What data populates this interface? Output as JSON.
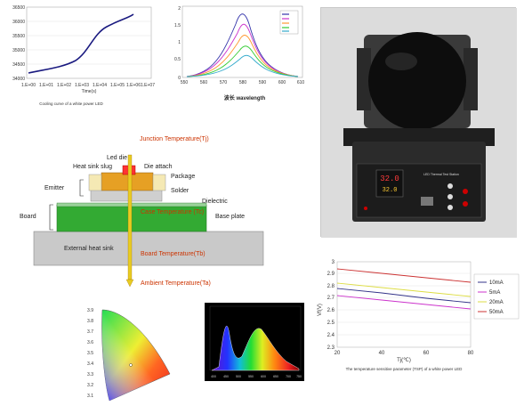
{
  "cooling_chart": {
    "ytick_labels": [
      "36500",
      "36000",
      "35500",
      "35000",
      "34500",
      "34000"
    ],
    "xtick_labels": [
      "1.E+00",
      "1.E+01",
      "1.E+02",
      "1.E+03",
      "1.E+04",
      "1.E+05",
      "1.E+06",
      "1.E+07"
    ],
    "xlabel": "Time(s)",
    "caption": "Cooling curve of a white power LED",
    "line_color": "#1a1a80"
  },
  "spectrum_chart": {
    "ytick_labels": [
      "2",
      "1.5",
      "1",
      "0.5",
      "0"
    ],
    "xtick_labels": [
      "550",
      "560",
      "570",
      "580",
      "590",
      "600",
      "610"
    ],
    "xlabel": "波长 wavelength",
    "legend_colors": [
      "#3333aa",
      "#cc33cc",
      "#ff9933",
      "#33cc33",
      "#33aacc"
    ]
  },
  "thermal_diagram": {
    "led_die": "Led die",
    "heat_sink_slug": "Heat sink slug",
    "die_attach": "Die attach",
    "package": "Package",
    "solder": "Solder",
    "emitter": "Emitter",
    "dielectric": "Dielectric",
    "board": "Board",
    "base_plate": "Base plate",
    "external_heat_sink": "External heat sink",
    "junction_temp": "Junction Temperature(Tj)",
    "case_temp": "Case Temperature (Tc)",
    "board_temp": "Board Temperature(Tb)",
    "ambient_temp": "Ambient Temperature(Ta)"
  },
  "device_photo": {
    "display_top": "32.0",
    "display_bottom": "32.0",
    "panel_text": "LED Thermal Test Station",
    "colors": {
      "body": "#2b2b2b",
      "dome": "#0d0d0d",
      "display": "#cc0000"
    }
  },
  "tsp_chart": {
    "ytick_labels": [
      "3",
      "2.9",
      "2.8",
      "2.7",
      "2.6",
      "2.5",
      "2.4",
      "2.3"
    ],
    "xtick_labels": [
      "20",
      "40",
      "60",
      "80"
    ],
    "ylabel": "Vf(V)",
    "xlabel": "Tj(℃)",
    "caption": "The temperature sensitive parameter (TSP) of a white power LED",
    "legend": [
      "10mA",
      "5mA",
      "20mA",
      "50mA"
    ],
    "colors": [
      "#333388",
      "#cc33cc",
      "#dddd44",
      "#cc3333"
    ]
  },
  "chromaticity_chart": {
    "ytick_labels": [
      "3.9",
      "3.8",
      "3.7",
      "3.6",
      "3.5",
      "3.4",
      "3.3",
      "3.2",
      "3.1"
    ]
  },
  "emission_spectrum": {
    "xtick_labels": [
      "400",
      "450",
      "500",
      "550",
      "600",
      "650",
      "700",
      "750"
    ]
  }
}
